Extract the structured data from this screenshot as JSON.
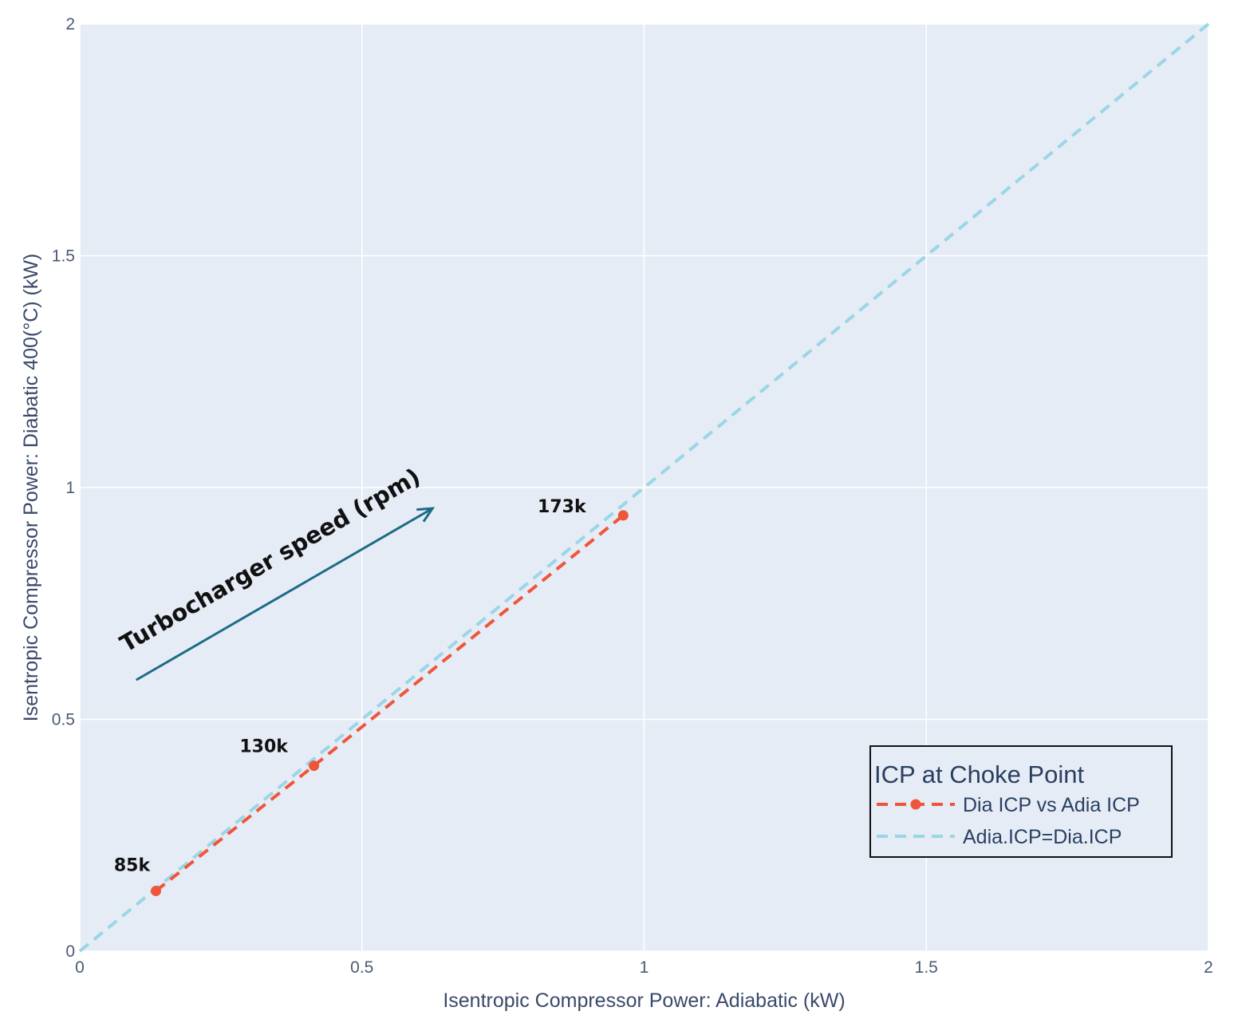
{
  "chart_data": {
    "type": "line",
    "title": "",
    "xlabel": "Isentropic Compressor Power: Adiabatic (kW)",
    "ylabel": "Isentropic Compressor Power: Diabatic 400(°C) (kW)",
    "xlim": [
      0,
      2
    ],
    "ylim": [
      0,
      2
    ],
    "x_ticks": [
      "0",
      "0.5",
      "1",
      "1.5",
      "2"
    ],
    "y_ticks": [
      "0",
      "0.5",
      "1",
      "1.5",
      "2"
    ],
    "grid": true,
    "plot_background": "#e5ecf6",
    "series": [
      {
        "name": "Dia ICP vs Adia ICP",
        "color": "#ef553b",
        "style": "dashed-with-markers",
        "x": [
          0.135,
          0.415,
          0.963
        ],
        "y": [
          0.13,
          0.4,
          0.94
        ],
        "labels": [
          "85k",
          "130k",
          "173k"
        ]
      },
      {
        "name": "Adia.ICP=Dia.ICP",
        "color": "#9ad6e6",
        "style": "dashed",
        "x": [
          0,
          2
        ],
        "y": [
          0,
          2
        ]
      }
    ],
    "annotation": {
      "text": "Turbocharger speed (rpm)",
      "arrow_color": "#1d6b86",
      "arrow_from": [
        0.1,
        0.585
      ],
      "arrow_to": [
        0.625,
        0.955
      ]
    },
    "legend": {
      "title": "ICP at Choke Point",
      "placement": "bottom-right"
    }
  }
}
